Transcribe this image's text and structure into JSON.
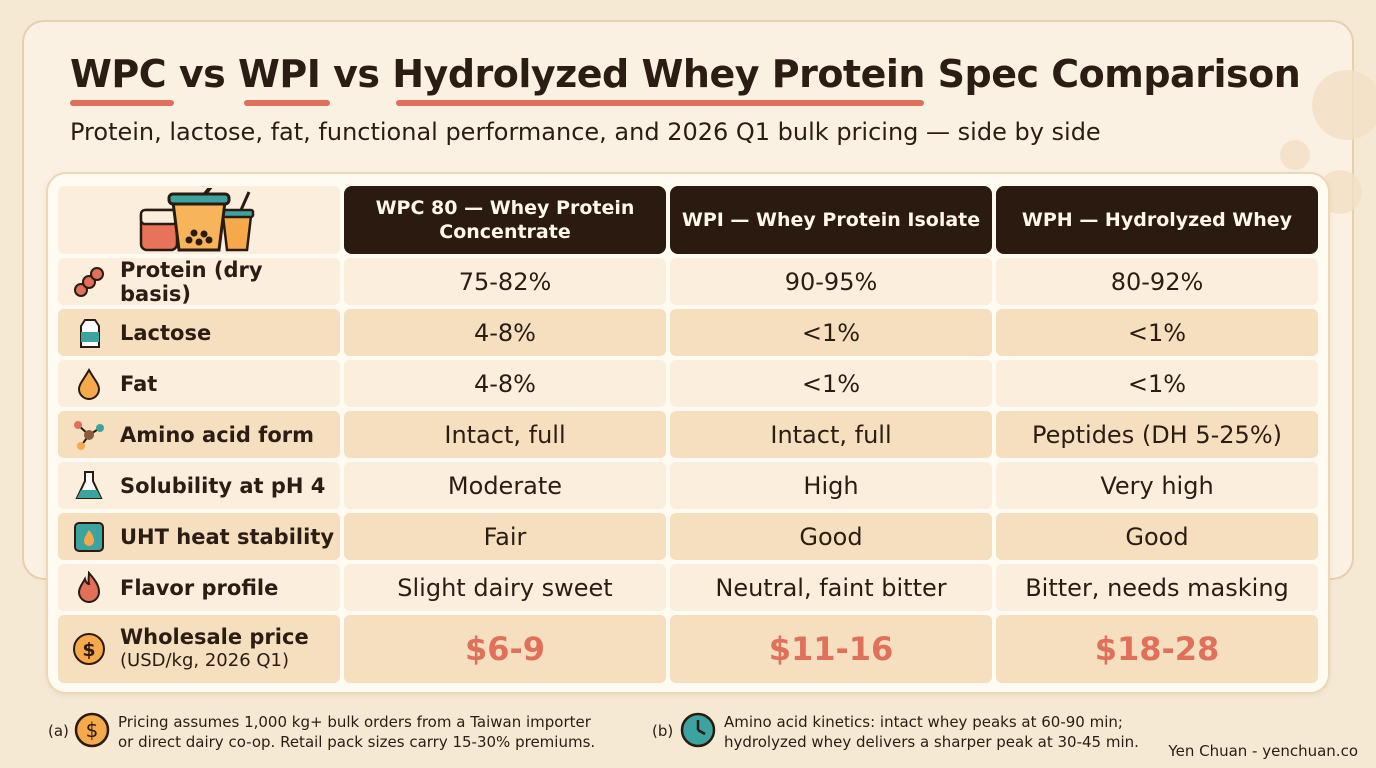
{
  "title": "WPC vs WPI vs Hydrolyzed Whey Protein Spec Comparison",
  "subtitle": "Protein, lactose, fat, functional performance, and 2026 Q1 bulk pricing — side by side",
  "accent_color": "#e0705a",
  "header_color": "#2a1a10",
  "columns": [
    "WPC 80 — Whey Protein Concentrate",
    "WPI — Whey Protein Isolate",
    "WPH — Hydrolyzed Whey"
  ],
  "rows": [
    {
      "label": "Protein (dry basis)",
      "icon": "protein-chain-icon",
      "values": [
        "75-82%",
        "90-95%",
        "80-92%"
      ]
    },
    {
      "label": "Lactose",
      "icon": "milk-carton-icon",
      "values": [
        "4-8%",
        "<1%",
        "<1%"
      ]
    },
    {
      "label": "Fat",
      "icon": "oil-drop-icon",
      "values": [
        "4-8%",
        "<1%",
        "<1%"
      ]
    },
    {
      "label": "Amino acid form",
      "icon": "molecule-icon",
      "values": [
        "Intact, full",
        "Intact, full",
        "Peptides (DH 5-25%)"
      ]
    },
    {
      "label": "Solubility at pH 4",
      "icon": "flask-icon",
      "values": [
        "Moderate",
        "High",
        "Very high"
      ]
    },
    {
      "label": "UHT heat stability",
      "icon": "heat-box-icon",
      "values": [
        "Fair",
        "Good",
        "Good"
      ]
    },
    {
      "label": "Flavor profile",
      "icon": "flame-icon",
      "values": [
        "Slight dairy sweet",
        "Neutral, faint bitter",
        "Bitter, needs masking"
      ]
    }
  ],
  "price_row": {
    "label": "Wholesale price",
    "sublabel": "(USD/kg, 2026 Q1)",
    "icon": "dollar-coin-icon",
    "values": [
      "$6-9",
      "$11-16",
      "$18-28"
    ]
  },
  "footnotes": [
    {
      "tag": "(a)",
      "icon": "dollar-coin-icon",
      "line1": "Pricing assumes 1,000 kg+ bulk orders from a Taiwan importer",
      "line2": "or direct dairy co-op. Retail pack sizes carry 15-30% premiums."
    },
    {
      "tag": "(b)",
      "icon": "clock-icon",
      "line1": "Amino acid kinetics: intact whey peaks at 60-90 min;",
      "line2": "hydrolyzed whey delivers a sharper peak at 30-45 min."
    }
  ],
  "credit": "Yen Chuan - yenchuan.co"
}
